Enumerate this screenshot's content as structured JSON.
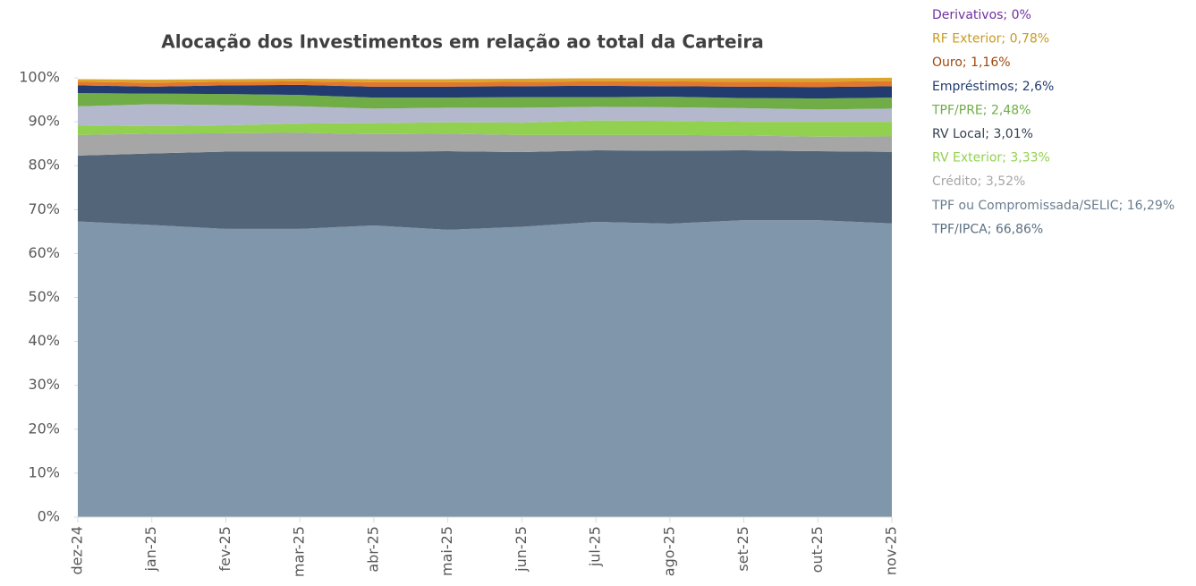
{
  "chart_data": {
    "type": "stacked_area",
    "title": "Alocação dos Investimentos em relação ao total da Carteira",
    "categories": [
      "dez-24",
      "jan-25",
      "fev-25",
      "mar-25",
      "abr-25",
      "mai-25",
      "jun-25",
      "jul-25",
      "ago-25",
      "set-25",
      "out-25",
      "nov-25"
    ],
    "ylim": [
      0,
      100
    ],
    "yticks": [
      {
        "value": 0,
        "label": "0%"
      },
      {
        "value": 10,
        "label": "10%"
      },
      {
        "value": 20,
        "label": "20%"
      },
      {
        "value": 30,
        "label": "30%"
      },
      {
        "value": 40,
        "label": "40%"
      },
      {
        "value": 50,
        "label": "50%"
      },
      {
        "value": 60,
        "label": "60%"
      },
      {
        "value": 70,
        "label": "70%"
      },
      {
        "value": 80,
        "label": "80%"
      },
      {
        "value": 90,
        "label": "90%"
      },
      {
        "value": 100,
        "label": "100%"
      }
    ],
    "series": [
      {
        "name": "TPF/IPCA; 66,86%",
        "color": "#8096aa",
        "label_color": "#5b6f82",
        "values": [
          67.3,
          66.5,
          65.6,
          65.6,
          66.4,
          65.4,
          66.1,
          67.2,
          66.8,
          67.6,
          67.6,
          66.86
        ]
      },
      {
        "name": "TPF ou Compromissada/SELIC; 16,29%",
        "color": "#536679",
        "label_color": "#6a7d90",
        "values": [
          15.0,
          16.3,
          17.6,
          17.6,
          16.8,
          17.9,
          17.0,
          16.3,
          16.6,
          15.9,
          15.7,
          16.29
        ]
      },
      {
        "name": "Crédito; 3,52%",
        "color": "#a6a6a6",
        "label_color": "#a6a6a6",
        "values": [
          4.7,
          4.5,
          4.2,
          4.3,
          4.0,
          4.0,
          3.9,
          3.5,
          3.6,
          3.4,
          3.3,
          3.52
        ]
      },
      {
        "name": "RV Exterior; 3,33%",
        "color": "#92d050",
        "label_color": "#92d050",
        "values": [
          2.2,
          1.7,
          1.8,
          2.1,
          2.5,
          2.6,
          2.8,
          3.3,
          3.2,
          3.1,
          3.4,
          3.33
        ]
      },
      {
        "name": "RV Local; 3,01%",
        "color": "#b3b8cc",
        "label_color": "#333f50",
        "values": [
          4.3,
          5.0,
          4.6,
          3.9,
          3.3,
          3.3,
          3.4,
          3.1,
          3.1,
          3.1,
          2.8,
          3.01
        ]
      },
      {
        "name": "TPF/PRE; 2,48%",
        "color": "#70ad47",
        "label_color": "#70ad47",
        "values": [
          3.0,
          2.4,
          2.5,
          2.6,
          2.5,
          2.3,
          2.4,
          2.2,
          2.4,
          2.3,
          2.5,
          2.48
        ]
      },
      {
        "name": "Empréstimos; 2,6%",
        "color": "#223c70",
        "label_color": "#223c70",
        "values": [
          1.8,
          1.6,
          2.0,
          2.3,
          2.5,
          2.5,
          2.5,
          2.6,
          2.4,
          2.6,
          2.6,
          2.6
        ]
      },
      {
        "name": "Ouro; 1,16%",
        "color": "#e3782d",
        "label_color": "#9e480e",
        "values": [
          0.8,
          0.9,
          0.8,
          0.8,
          1.0,
          1.0,
          1.0,
          1.0,
          1.1,
          1.1,
          1.2,
          1.16
        ]
      },
      {
        "name": "RF Exterior; 0,78%",
        "color": "#dba42a",
        "label_color": "#c99a1e",
        "values": [
          0.6,
          0.7,
          0.6,
          0.6,
          0.7,
          0.7,
          0.7,
          0.7,
          0.7,
          0.8,
          0.8,
          0.78
        ]
      },
      {
        "name": "Derivativos; 0%",
        "color": "#7030a0",
        "label_color": "#7030a0",
        "values": [
          0,
          0,
          0,
          0,
          0,
          0,
          0,
          0,
          0,
          0,
          0,
          0
        ]
      }
    ]
  }
}
